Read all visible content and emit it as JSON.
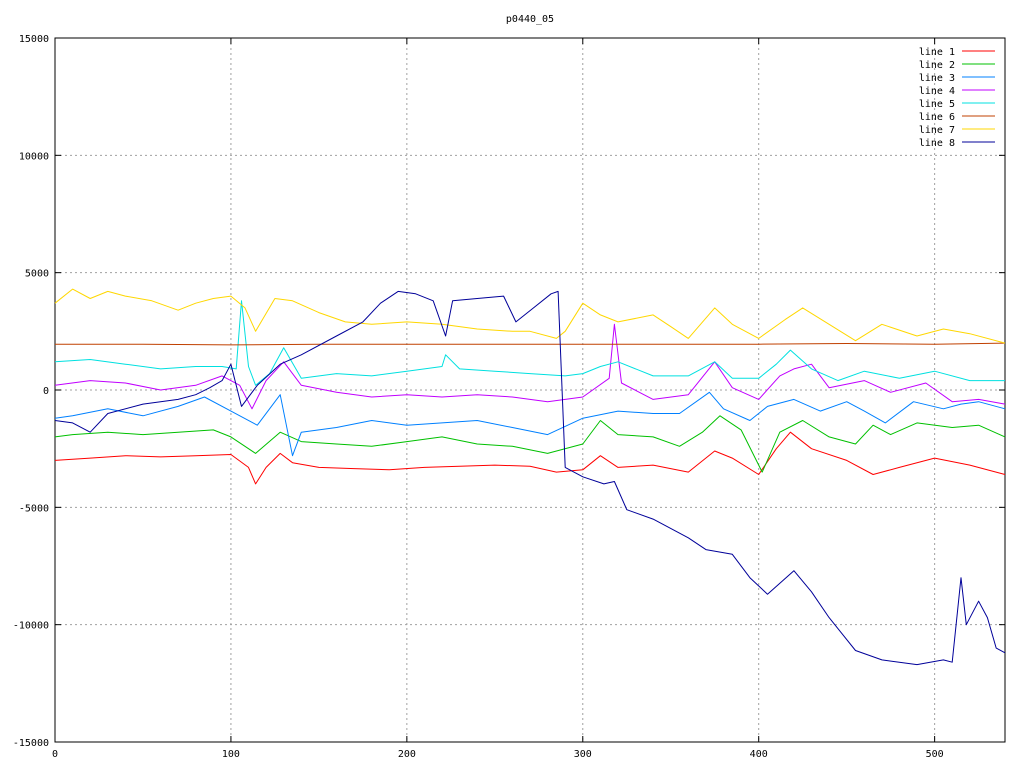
{
  "chart_data": {
    "type": "line",
    "title": "p0440_05",
    "xlabel": "",
    "ylabel": "",
    "xlim": [
      0,
      540
    ],
    "ylim": [
      -15000,
      15000
    ],
    "xticks": [
      0,
      100,
      200,
      300,
      400,
      500
    ],
    "yticks": [
      -15000,
      -10000,
      -5000,
      0,
      5000,
      10000,
      15000
    ],
    "grid": true,
    "legend_position": "top-right",
    "series": [
      {
        "name": "line 1",
        "color": "#ff0000",
        "points": [
          [
            0,
            -3000
          ],
          [
            20,
            -2900
          ],
          [
            40,
            -2800
          ],
          [
            60,
            -2850
          ],
          [
            80,
            -2800
          ],
          [
            100,
            -2750
          ],
          [
            110,
            -3300
          ],
          [
            114,
            -4000
          ],
          [
            120,
            -3300
          ],
          [
            128,
            -2700
          ],
          [
            135,
            -3100
          ],
          [
            150,
            -3300
          ],
          [
            170,
            -3350
          ],
          [
            190,
            -3400
          ],
          [
            210,
            -3300
          ],
          [
            230,
            -3250
          ],
          [
            250,
            -3200
          ],
          [
            270,
            -3250
          ],
          [
            285,
            -3500
          ],
          [
            300,
            -3400
          ],
          [
            310,
            -2800
          ],
          [
            320,
            -3300
          ],
          [
            340,
            -3200
          ],
          [
            360,
            -3500
          ],
          [
            375,
            -2600
          ],
          [
            385,
            -2900
          ],
          [
            400,
            -3600
          ],
          [
            410,
            -2500
          ],
          [
            418,
            -1800
          ],
          [
            430,
            -2500
          ],
          [
            450,
            -3000
          ],
          [
            465,
            -3600
          ],
          [
            480,
            -3300
          ],
          [
            500,
            -2900
          ],
          [
            520,
            -3200
          ],
          [
            540,
            -3600
          ]
        ]
      },
      {
        "name": "line 2",
        "color": "#00c000",
        "points": [
          [
            0,
            -2000
          ],
          [
            10,
            -1900
          ],
          [
            30,
            -1800
          ],
          [
            50,
            -1900
          ],
          [
            70,
            -1800
          ],
          [
            90,
            -1700
          ],
          [
            100,
            -2000
          ],
          [
            114,
            -2700
          ],
          [
            128,
            -1800
          ],
          [
            140,
            -2200
          ],
          [
            160,
            -2300
          ],
          [
            180,
            -2400
          ],
          [
            200,
            -2200
          ],
          [
            220,
            -2000
          ],
          [
            240,
            -2300
          ],
          [
            260,
            -2400
          ],
          [
            280,
            -2700
          ],
          [
            300,
            -2300
          ],
          [
            310,
            -1300
          ],
          [
            320,
            -1900
          ],
          [
            340,
            -2000
          ],
          [
            355,
            -2400
          ],
          [
            368,
            -1800
          ],
          [
            378,
            -1100
          ],
          [
            390,
            -1700
          ],
          [
            402,
            -3500
          ],
          [
            412,
            -1800
          ],
          [
            425,
            -1300
          ],
          [
            440,
            -2000
          ],
          [
            455,
            -2300
          ],
          [
            465,
            -1500
          ],
          [
            475,
            -1900
          ],
          [
            490,
            -1400
          ],
          [
            510,
            -1600
          ],
          [
            525,
            -1500
          ],
          [
            540,
            -2000
          ]
        ]
      },
      {
        "name": "line 3",
        "color": "#0080ff",
        "points": [
          [
            0,
            -1200
          ],
          [
            10,
            -1100
          ],
          [
            30,
            -800
          ],
          [
            50,
            -1100
          ],
          [
            70,
            -700
          ],
          [
            85,
            -300
          ],
          [
            100,
            -900
          ],
          [
            115,
            -1500
          ],
          [
            128,
            -200
          ],
          [
            135,
            -2800
          ],
          [
            140,
            -1800
          ],
          [
            160,
            -1600
          ],
          [
            180,
            -1300
          ],
          [
            200,
            -1500
          ],
          [
            220,
            -1400
          ],
          [
            240,
            -1300
          ],
          [
            260,
            -1600
          ],
          [
            280,
            -1900
          ],
          [
            300,
            -1200
          ],
          [
            320,
            -900
          ],
          [
            340,
            -1000
          ],
          [
            355,
            -1000
          ],
          [
            372,
            -100
          ],
          [
            380,
            -800
          ],
          [
            395,
            -1300
          ],
          [
            405,
            -700
          ],
          [
            420,
            -400
          ],
          [
            435,
            -900
          ],
          [
            450,
            -500
          ],
          [
            460,
            -900
          ],
          [
            472,
            -1400
          ],
          [
            488,
            -500
          ],
          [
            505,
            -800
          ],
          [
            515,
            -600
          ],
          [
            525,
            -500
          ],
          [
            540,
            -800
          ]
        ]
      },
      {
        "name": "line 4",
        "color": "#c000ff",
        "points": [
          [
            0,
            200
          ],
          [
            20,
            400
          ],
          [
            40,
            300
          ],
          [
            60,
            0
          ],
          [
            80,
            200
          ],
          [
            95,
            600
          ],
          [
            105,
            200
          ],
          [
            112,
            -800
          ],
          [
            120,
            400
          ],
          [
            130,
            1200
          ],
          [
            140,
            200
          ],
          [
            160,
            -100
          ],
          [
            180,
            -300
          ],
          [
            200,
            -200
          ],
          [
            220,
            -300
          ],
          [
            240,
            -200
          ],
          [
            260,
            -300
          ],
          [
            280,
            -500
          ],
          [
            300,
            -300
          ],
          [
            315,
            500
          ],
          [
            318,
            2800
          ],
          [
            322,
            300
          ],
          [
            340,
            -400
          ],
          [
            360,
            -200
          ],
          [
            375,
            1200
          ],
          [
            385,
            100
          ],
          [
            400,
            -400
          ],
          [
            412,
            600
          ],
          [
            420,
            900
          ],
          [
            430,
            1100
          ],
          [
            440,
            100
          ],
          [
            460,
            400
          ],
          [
            475,
            -100
          ],
          [
            495,
            300
          ],
          [
            510,
            -500
          ],
          [
            525,
            -400
          ],
          [
            540,
            -600
          ]
        ]
      },
      {
        "name": "line 5",
        "color": "#00e0e0",
        "points": [
          [
            0,
            1200
          ],
          [
            20,
            1300
          ],
          [
            40,
            1100
          ],
          [
            60,
            900
          ],
          [
            80,
            1000
          ],
          [
            95,
            1000
          ],
          [
            103,
            900
          ],
          [
            106,
            3800
          ],
          [
            110,
            1000
          ],
          [
            114,
            200
          ],
          [
            122,
            700
          ],
          [
            130,
            1800
          ],
          [
            140,
            500
          ],
          [
            160,
            700
          ],
          [
            180,
            600
          ],
          [
            200,
            800
          ],
          [
            220,
            1000
          ],
          [
            222,
            1500
          ],
          [
            230,
            900
          ],
          [
            250,
            800
          ],
          [
            270,
            700
          ],
          [
            290,
            600
          ],
          [
            300,
            700
          ],
          [
            310,
            1000
          ],
          [
            320,
            1200
          ],
          [
            340,
            600
          ],
          [
            360,
            600
          ],
          [
            375,
            1200
          ],
          [
            385,
            500
          ],
          [
            400,
            500
          ],
          [
            410,
            1100
          ],
          [
            418,
            1700
          ],
          [
            430,
            900
          ],
          [
            445,
            400
          ],
          [
            460,
            800
          ],
          [
            480,
            500
          ],
          [
            500,
            800
          ],
          [
            520,
            400
          ],
          [
            540,
            400
          ]
        ]
      },
      {
        "name": "line 6",
        "color": "#c04000",
        "points": [
          [
            0,
            1950
          ],
          [
            50,
            1950
          ],
          [
            100,
            1920
          ],
          [
            150,
            1950
          ],
          [
            200,
            1950
          ],
          [
            250,
            1950
          ],
          [
            300,
            1950
          ],
          [
            350,
            1950
          ],
          [
            400,
            1950
          ],
          [
            450,
            1980
          ],
          [
            500,
            1950
          ],
          [
            540,
            2000
          ]
        ]
      },
      {
        "name": "line 7",
        "color": "#ffd700",
        "points": [
          [
            0,
            3700
          ],
          [
            10,
            4300
          ],
          [
            20,
            3900
          ],
          [
            30,
            4200
          ],
          [
            40,
            4000
          ],
          [
            55,
            3800
          ],
          [
            70,
            3400
          ],
          [
            80,
            3700
          ],
          [
            90,
            3900
          ],
          [
            100,
            4000
          ],
          [
            108,
            3500
          ],
          [
            114,
            2500
          ],
          [
            125,
            3900
          ],
          [
            135,
            3800
          ],
          [
            150,
            3300
          ],
          [
            165,
            2900
          ],
          [
            180,
            2800
          ],
          [
            200,
            2900
          ],
          [
            220,
            2800
          ],
          [
            240,
            2600
          ],
          [
            260,
            2500
          ],
          [
            270,
            2500
          ],
          [
            285,
            2200
          ],
          [
            290,
            2500
          ],
          [
            300,
            3700
          ],
          [
            310,
            3200
          ],
          [
            320,
            2900
          ],
          [
            340,
            3200
          ],
          [
            350,
            2700
          ],
          [
            360,
            2200
          ],
          [
            375,
            3500
          ],
          [
            385,
            2800
          ],
          [
            400,
            2200
          ],
          [
            415,
            3000
          ],
          [
            425,
            3500
          ],
          [
            440,
            2800
          ],
          [
            455,
            2100
          ],
          [
            470,
            2800
          ],
          [
            490,
            2300
          ],
          [
            505,
            2600
          ],
          [
            520,
            2400
          ],
          [
            540,
            2000
          ]
        ]
      },
      {
        "name": "line 8",
        "color": "#000099",
        "points": [
          [
            0,
            -1300
          ],
          [
            10,
            -1400
          ],
          [
            20,
            -1800
          ],
          [
            30,
            -1000
          ],
          [
            50,
            -600
          ],
          [
            70,
            -400
          ],
          [
            80,
            -200
          ],
          [
            88,
            100
          ],
          [
            95,
            400
          ],
          [
            100,
            1100
          ],
          [
            106,
            -700
          ],
          [
            115,
            200
          ],
          [
            128,
            1100
          ],
          [
            140,
            1500
          ],
          [
            160,
            2300
          ],
          [
            175,
            2900
          ],
          [
            185,
            3700
          ],
          [
            195,
            4200
          ],
          [
            205,
            4100
          ],
          [
            215,
            3800
          ],
          [
            222,
            2300
          ],
          [
            226,
            3800
          ],
          [
            240,
            3900
          ],
          [
            255,
            4000
          ],
          [
            262,
            2900
          ],
          [
            272,
            3500
          ],
          [
            282,
            4100
          ],
          [
            286,
            4200
          ],
          [
            290,
            -3300
          ],
          [
            300,
            -3700
          ],
          [
            312,
            -4000
          ],
          [
            318,
            -3900
          ],
          [
            325,
            -5100
          ],
          [
            340,
            -5500
          ],
          [
            360,
            -6300
          ],
          [
            370,
            -6800
          ],
          [
            385,
            -7000
          ],
          [
            395,
            -8000
          ],
          [
            405,
            -8700
          ],
          [
            420,
            -7700
          ],
          [
            430,
            -8600
          ],
          [
            440,
            -9700
          ],
          [
            455,
            -11100
          ],
          [
            470,
            -11500
          ],
          [
            490,
            -11700
          ],
          [
            505,
            -11500
          ],
          [
            510,
            -11600
          ],
          [
            515,
            -8000
          ],
          [
            518,
            -10000
          ],
          [
            525,
            -9000
          ],
          [
            530,
            -9700
          ],
          [
            535,
            -11000
          ],
          [
            540,
            -11200
          ]
        ]
      }
    ]
  }
}
